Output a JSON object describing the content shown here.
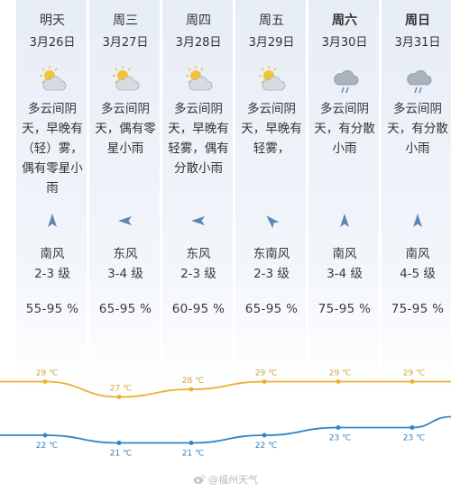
{
  "days": [
    {
      "day": "明天",
      "date": "3月26日",
      "weekend": false,
      "icon": "partly-cloudy-icon",
      "desc": "多云间阴\n天，早晚有\n（轻）雾，\n偶有零星小\n雨",
      "wind_dir": "南风",
      "wind_level": "2-3 级",
      "humidity": "55-95 %",
      "wind_arrow": "north-arrow-icon",
      "arrow_deg": 0
    },
    {
      "day": "周三",
      "date": "3月27日",
      "weekend": false,
      "icon": "partly-cloudy-icon",
      "desc": "多云间阴\n天，偶有零\n星小雨",
      "wind_dir": "东风",
      "wind_level": "3-4 级",
      "humidity": "65-95 %",
      "wind_arrow": "west-arrow-icon",
      "arrow_deg": -90
    },
    {
      "day": "周四",
      "date": "3月28日",
      "weekend": false,
      "icon": "partly-cloudy-icon",
      "desc": "多云间阴\n天，早晚有\n轻雾，偶有\n分散小雨",
      "wind_dir": "东风",
      "wind_level": "2-3 级",
      "humidity": "60-95 %",
      "wind_arrow": "west-arrow-icon",
      "arrow_deg": -90
    },
    {
      "day": "周五",
      "date": "3月29日",
      "weekend": false,
      "icon": "partly-cloudy-icon",
      "desc": "多云间阴\n天，早晚有\n轻雾，",
      "wind_dir": "东南风",
      "wind_level": "2-3 级",
      "humidity": "65-95 %",
      "wind_arrow": "northwest-arrow-icon",
      "arrow_deg": -45
    },
    {
      "day": "周六",
      "date": "3月30日",
      "weekend": true,
      "icon": "rain-cloud-icon",
      "desc": "多云间阴\n天，有分散\n小雨",
      "wind_dir": "南风",
      "wind_level": "3-4 级",
      "humidity": "75-95 %",
      "wind_arrow": "north-arrow-icon",
      "arrow_deg": 0
    },
    {
      "day": "周日",
      "date": "3月31日",
      "weekend": true,
      "icon": "rain-cloud-icon",
      "desc": "多云间阴\n天，有分散\n小雨",
      "wind_dir": "南风",
      "wind_level": "4-5 级",
      "humidity": "75-95 %",
      "wind_arrow": "north-arrow-icon",
      "arrow_deg": 0
    }
  ],
  "chart_data": {
    "type": "line",
    "categories": [
      "3月26日",
      "3月27日",
      "3月28日",
      "3月29日",
      "3月30日",
      "3月31日"
    ],
    "series": [
      {
        "values": [
          29,
          27,
          28,
          29,
          29,
          29
        ],
        "labels": [
          "29 ℃",
          "27 ℃",
          "28 ℃",
          "29 ℃",
          "29 ℃",
          "29 ℃"
        ],
        "color": "#f0b030"
      },
      {
        "values": [
          22,
          21,
          21,
          22,
          23,
          23
        ],
        "labels": [
          "22 ℃",
          "21 ℃",
          "21 ℃",
          "22 ℃",
          "23 ℃",
          "23 ℃"
        ],
        "color": "#2f86c6"
      }
    ]
  },
  "watermark": "@福州天气"
}
